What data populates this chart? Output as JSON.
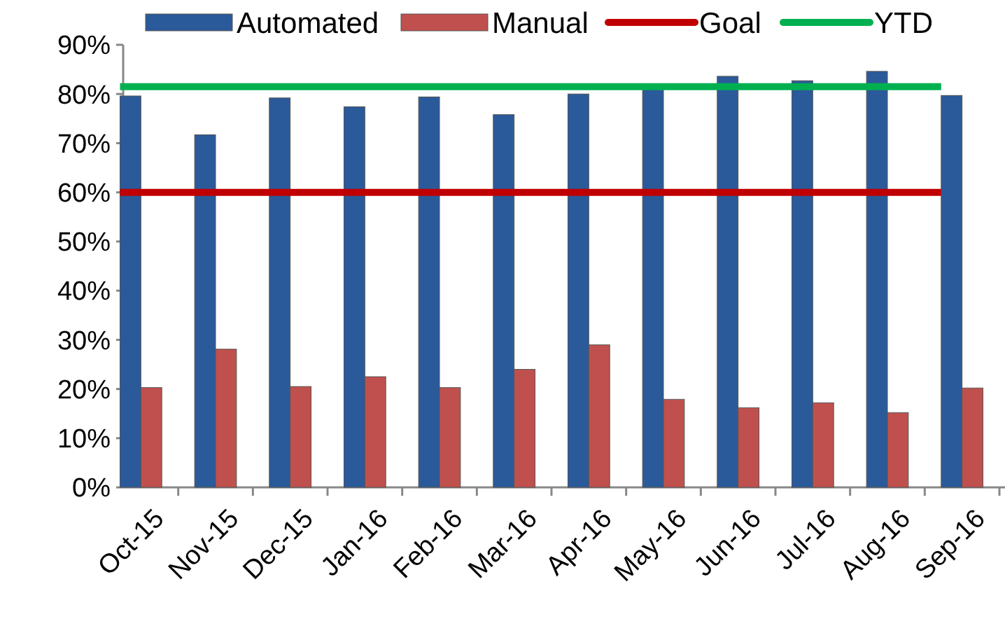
{
  "chart_data": {
    "type": "bar",
    "categories": [
      "Oct-15",
      "Nov-15",
      "Dec-15",
      "Jan-16",
      "Feb-16",
      "Mar-16",
      "Apr-16",
      "May-16",
      "Jun-16",
      "Jul-16",
      "Aug-16",
      "Sep-16"
    ],
    "series": [
      {
        "name": "Automated",
        "color": "#2a5a9a",
        "values": [
          79.6,
          71.7,
          79.2,
          77.4,
          79.4,
          75.8,
          80.0,
          81.8,
          83.6,
          82.7,
          84.6,
          79.7
        ]
      },
      {
        "name": "Manual",
        "color": "#c0504d",
        "values": [
          20.3,
          28.1,
          20.5,
          22.5,
          20.3,
          24.0,
          29.0,
          17.9,
          16.2,
          17.2,
          15.2,
          20.2
        ]
      },
      {
        "name": "Goal",
        "type": "line",
        "color": "#c00000",
        "values": [
          60,
          60,
          60,
          60,
          60,
          60,
          60,
          60,
          60,
          60,
          60,
          60
        ]
      },
      {
        "name": "YTD",
        "type": "line",
        "color": "#00b050",
        "values": [
          81.5,
          81.5,
          81.5,
          81.5,
          81.5,
          81.5,
          81.5,
          81.5,
          81.5,
          81.5,
          81.5,
          81.5
        ]
      }
    ],
    "ylim": [
      0,
      90
    ],
    "yticks": [
      {
        "value": 0,
        "label": "0%"
      },
      {
        "value": 10,
        "label": "10%"
      },
      {
        "value": 20,
        "label": "20%"
      },
      {
        "value": 30,
        "label": "30%"
      },
      {
        "value": 40,
        "label": "40%"
      },
      {
        "value": 50,
        "label": "50%"
      },
      {
        "value": 60,
        "label": "60%"
      },
      {
        "value": 70,
        "label": "70%"
      },
      {
        "value": 80,
        "label": "80%"
      },
      {
        "value": 90,
        "label": "90%"
      }
    ],
    "grid": false,
    "legend": "top"
  }
}
